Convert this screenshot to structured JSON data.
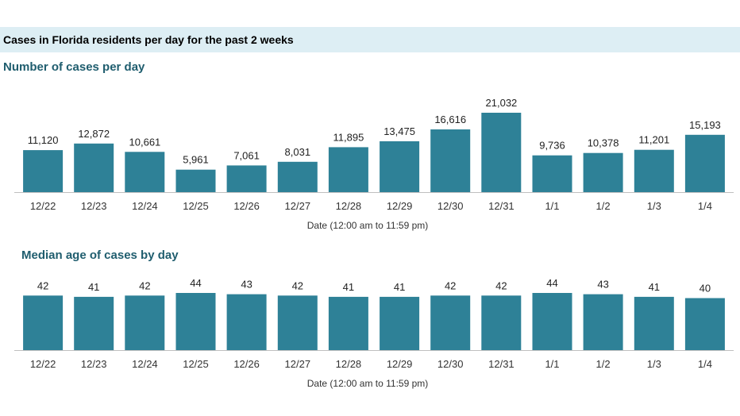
{
  "header": {
    "title": "Cases in Florida residents per day for the past 2 weeks"
  },
  "colors": {
    "bar": "#2e8197",
    "section_title": "#1f5d6e",
    "header_bg": "#ddeef4",
    "axis": "#bfbfbf"
  },
  "chart_data": [
    {
      "type": "bar",
      "title": "Number of cases per day",
      "xlabel": "Date (12:00 am to 11:59 pm)",
      "ylabel": "",
      "categories": [
        "12/22",
        "12/23",
        "12/24",
        "12/25",
        "12/26",
        "12/27",
        "12/28",
        "12/29",
        "12/30",
        "12/31",
        "1/1",
        "1/2",
        "1/3",
        "1/4"
      ],
      "values": [
        11120,
        12872,
        10661,
        5961,
        7061,
        8031,
        11895,
        13475,
        16616,
        21032,
        9736,
        10378,
        11201,
        15193
      ],
      "data_labels": [
        "11,120",
        "12,872",
        "10,661",
        "5,961",
        "7,061",
        "8,031",
        "11,895",
        "13,475",
        "16,616",
        "21,032",
        "9,736",
        "10,378",
        "11,201",
        "15,193"
      ],
      "ylim": [
        0,
        21032
      ],
      "grid": false,
      "legend": "none"
    },
    {
      "type": "bar",
      "title": "Median age of cases by day",
      "xlabel": "Date (12:00 am to 11:59 pm)",
      "ylabel": "",
      "categories": [
        "12/22",
        "12/23",
        "12/24",
        "12/25",
        "12/26",
        "12/27",
        "12/28",
        "12/29",
        "12/30",
        "12/31",
        "1/1",
        "1/2",
        "1/3",
        "1/4"
      ],
      "values": [
        42,
        41,
        42,
        44,
        43,
        42,
        41,
        41,
        42,
        42,
        44,
        43,
        41,
        40
      ],
      "data_labels": [
        "42",
        "41",
        "42",
        "44",
        "43",
        "42",
        "41",
        "41",
        "42",
        "42",
        "44",
        "43",
        "41",
        "40"
      ],
      "ylim": [
        0,
        44
      ],
      "grid": false,
      "legend": "none"
    }
  ]
}
